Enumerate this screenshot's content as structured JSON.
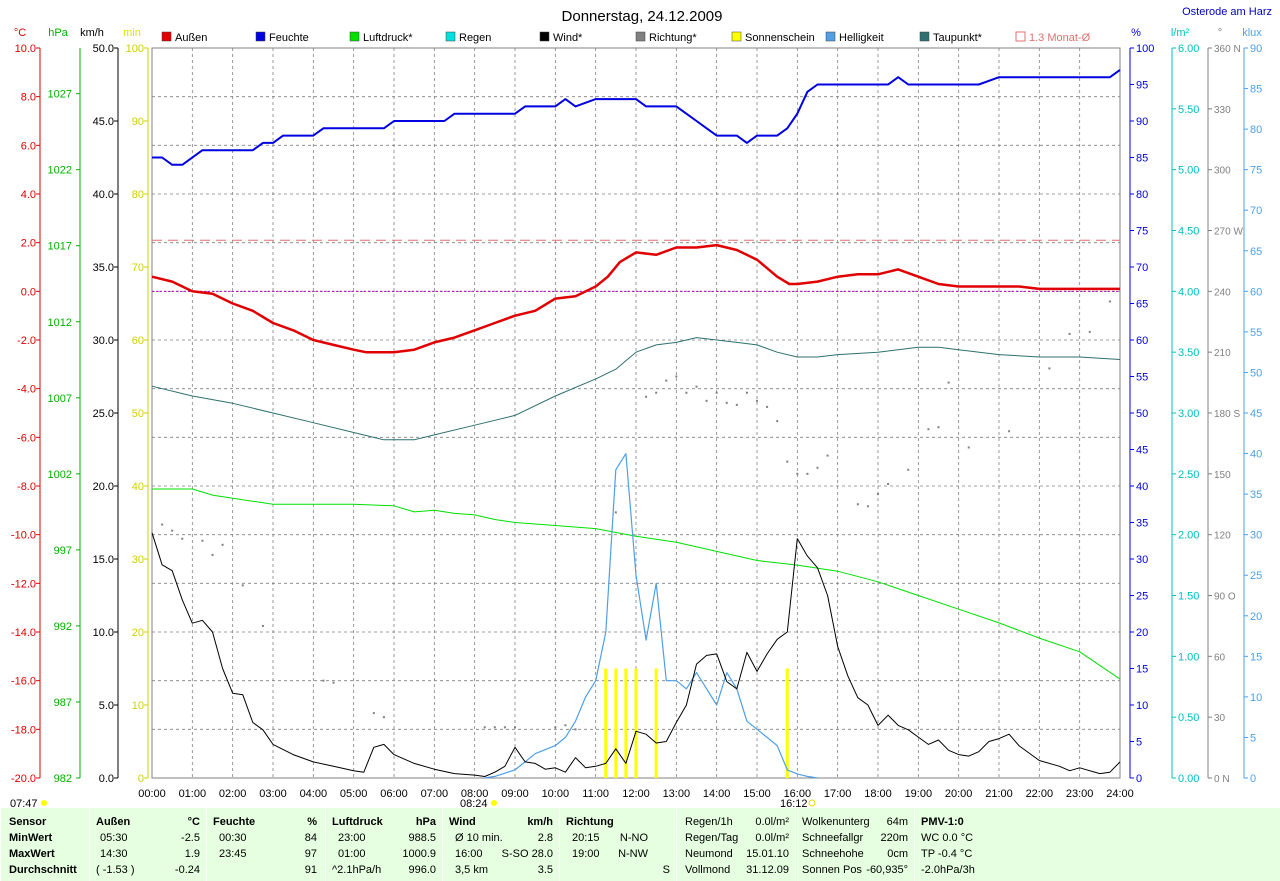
{
  "title": "Donnerstag, 24.12.2009",
  "location": "Osterode am Harz",
  "axes_units": {
    "temp": "°C",
    "pressure": "hPa",
    "wind": "km/h",
    "sun": "min",
    "humidity": "%",
    "rain": "l/m²",
    "direction": "°",
    "light": "klux"
  },
  "legend": [
    {
      "label": "Außen",
      "color": "#e00000",
      "box": "fill"
    },
    {
      "label": "Feuchte",
      "color": "#0000e0",
      "box": "fill"
    },
    {
      "label": "Luftdruck*",
      "color": "#00e000",
      "box": "fill"
    },
    {
      "label": "Regen",
      "color": "#00e0e0",
      "box": "fill"
    },
    {
      "label": "Wind*",
      "color": "#000000",
      "box": "fill"
    },
    {
      "label": "Richtung*",
      "color": "#808080",
      "box": "fill"
    },
    {
      "label": "Sonnenschein",
      "color": "#ffff00",
      "box": "fill"
    },
    {
      "label": "Helligkeit",
      "color": "#4f9fe8",
      "box": "fill"
    },
    {
      "label": "Taupunkt*",
      "color": "#2f6f6f",
      "box": "fill"
    },
    {
      "label": "1.3 Monat-Ø",
      "color": "#e07070",
      "box": "outline"
    }
  ],
  "chart_data": {
    "type": "line",
    "x_ticks": [
      "00:00",
      "01:00",
      "02:00",
      "03:00",
      "04:00",
      "05:00",
      "06:00",
      "07:00",
      "08:00",
      "09:00",
      "10:00",
      "11:00",
      "12:00",
      "13:00",
      "14:00",
      "15:00",
      "16:00",
      "17:00",
      "18:00",
      "19:00",
      "20:00",
      "21:00",
      "22:00",
      "23:00",
      "24:00"
    ],
    "temp_ticks": [
      "10.0",
      "8.0",
      "6.0",
      "4.0",
      "2.0",
      "0.0",
      "-2.0",
      "-4.0",
      "-6.0",
      "-8.0",
      "-10.0",
      "-12.0",
      "-14.0",
      "-16.0",
      "-18.0",
      "-20.0"
    ],
    "pressure_ticks": [
      "1027",
      "1022",
      "1017",
      "1012",
      "1007",
      "1002",
      "997",
      "992",
      "987",
      "982"
    ],
    "wind_ticks": [
      "50.0",
      "45.0",
      "40.0",
      "35.0",
      "30.0",
      "25.0",
      "20.0",
      "15.0",
      "10.0",
      "5.0",
      "0.0"
    ],
    "sun_ticks": [
      "100",
      "90",
      "80",
      "70",
      "60",
      "50",
      "40",
      "30",
      "20",
      "10",
      "0"
    ],
    "humidity_ticks": [
      "100",
      "95",
      "90",
      "85",
      "80",
      "75",
      "70",
      "65",
      "60",
      "55",
      "50",
      "45",
      "40",
      "35",
      "30",
      "25",
      "20",
      "15",
      "10",
      "5",
      "0"
    ],
    "rain_ticks": [
      "6.00",
      "5.50",
      "5.00",
      "4.50",
      "4.00",
      "3.50",
      "3.00",
      "2.50",
      "2.00",
      "1.50",
      "1.00",
      "0.50",
      "0.00"
    ],
    "direction_ticks": [
      "360 N",
      "330",
      "300",
      "270 W",
      "240",
      "210",
      "180 S",
      "150",
      "120",
      "90 O",
      "60",
      "30",
      "0 N"
    ],
    "light_ticks": [
      "90",
      "85",
      "80",
      "75",
      "70",
      "65",
      "60",
      "55",
      "50",
      "45",
      "40",
      "35",
      "30",
      "25",
      "20",
      "15",
      "10",
      "5",
      "0"
    ],
    "monthly_avg_temp": 2.1,
    "series": [
      {
        "name": "Außen",
        "axis": "temp",
        "color": "#e00000",
        "x": [
          0,
          0.5,
          1,
          1.5,
          2,
          2.5,
          3,
          3.5,
          4,
          4.5,
          5,
          5.3,
          5.5,
          6,
          6.5,
          7,
          7.5,
          8,
          8.5,
          9,
          9.5,
          10,
          10.5,
          11,
          11.3,
          11.6,
          12,
          12.5,
          13,
          13.5,
          14,
          14.5,
          15,
          15.5,
          15.8,
          16,
          16.5,
          17,
          17.5,
          18,
          18.5,
          19,
          19.5,
          20,
          20.5,
          21,
          21.5,
          22,
          22.5,
          23,
          23.5,
          24
        ],
        "y": [
          0.6,
          0.4,
          0.0,
          -0.1,
          -0.5,
          -0.8,
          -1.3,
          -1.6,
          -2.0,
          -2.2,
          -2.4,
          -2.5,
          -2.5,
          -2.5,
          -2.4,
          -2.1,
          -1.9,
          -1.6,
          -1.3,
          -1.0,
          -0.8,
          -0.3,
          -0.2,
          0.2,
          0.6,
          1.2,
          1.6,
          1.5,
          1.8,
          1.8,
          1.9,
          1.7,
          1.3,
          0.6,
          0.3,
          0.3,
          0.4,
          0.6,
          0.7,
          0.7,
          0.9,
          0.6,
          0.3,
          0.2,
          0.2,
          0.2,
          0.2,
          0.1,
          0.1,
          0.1,
          0.1,
          0.1
        ]
      },
      {
        "name": "Feuchte",
        "axis": "humidity",
        "color": "#0000e0",
        "x": [
          0,
          0.25,
          0.5,
          0.75,
          1.25,
          2.5,
          2.75,
          3,
          3.25,
          4,
          4.25,
          4.5,
          5.75,
          6,
          7.25,
          7.5,
          9,
          9.25,
          10,
          10.25,
          10.5,
          11,
          11.25,
          12,
          12.25,
          13,
          13.25,
          13.5,
          13.75,
          14,
          14.5,
          14.75,
          15,
          15.5,
          15.75,
          16,
          16.25,
          16.5,
          18.25,
          18.5,
          18.75,
          20,
          20.5,
          21,
          23.75,
          24
        ],
        "y": [
          85,
          85,
          84,
          84,
          86,
          86,
          87,
          87,
          88,
          88,
          89,
          89,
          89,
          90,
          90,
          91,
          91,
          92,
          92,
          93,
          92,
          93,
          93,
          93,
          92,
          92,
          91,
          90,
          89,
          88,
          88,
          87,
          88,
          88,
          89,
          91,
          94,
          95,
          95,
          96,
          95,
          95,
          95,
          96,
          96,
          97
        ]
      },
      {
        "name": "Luftdruck*",
        "axis": "pressure",
        "color": "#00e000",
        "x": [
          0,
          1,
          1.5,
          2,
          3,
          4,
          5,
          6,
          6.5,
          7,
          7.5,
          8,
          8.5,
          9,
          10,
          11,
          12,
          13,
          14,
          15,
          16,
          17,
          18,
          19,
          20,
          21,
          22,
          23,
          24
        ],
        "y": [
          1001.0,
          1001.0,
          1000.6,
          1000.4,
          1000.0,
          1000.0,
          1000.0,
          999.9,
          999.5,
          999.6,
          999.4,
          999.3,
          999.0,
          998.8,
          998.6,
          998.4,
          997.9,
          997.5,
          996.9,
          996.3,
          996.0,
          995.6,
          994.9,
          994.0,
          993.1,
          992.2,
          991.2,
          990.3,
          988.5
        ]
      },
      {
        "name": "Taupunkt*",
        "axis": "temp",
        "color": "#2f6f6f",
        "x": [
          0,
          1,
          2,
          3,
          4,
          5,
          5.75,
          6,
          6.5,
          7,
          8,
          9,
          10,
          11,
          11.5,
          12,
          12.5,
          13,
          13.5,
          14,
          14.5,
          15,
          15.5,
          16,
          16.5,
          17,
          18,
          18.5,
          19,
          19.5,
          20,
          21,
          22,
          23,
          24
        ],
        "y": [
          -3.9,
          -4.3,
          -4.6,
          -5.0,
          -5.4,
          -5.8,
          -6.1,
          -6.1,
          -6.1,
          -5.9,
          -5.5,
          -5.1,
          -4.3,
          -3.6,
          -3.2,
          -2.5,
          -2.2,
          -2.1,
          -1.9,
          -2.0,
          -2.1,
          -2.2,
          -2.5,
          -2.7,
          -2.7,
          -2.6,
          -2.5,
          -2.4,
          -2.3,
          -2.3,
          -2.4,
          -2.6,
          -2.7,
          -2.7,
          -2.8
        ]
      },
      {
        "name": "Wind*",
        "axis": "wind",
        "color": "#000000",
        "x": [
          0,
          0.25,
          0.5,
          0.75,
          1,
          1.25,
          1.5,
          1.75,
          2,
          2.25,
          2.5,
          2.75,
          3,
          3.5,
          4,
          4.5,
          5,
          5.25,
          5.5,
          5.75,
          6,
          6.5,
          7,
          7.5,
          8,
          8.25,
          8.5,
          8.75,
          9,
          9.25,
          9.5,
          9.75,
          10,
          10.25,
          10.5,
          10.75,
          11,
          11.25,
          11.5,
          11.75,
          12,
          12.25,
          12.5,
          12.75,
          13,
          13.25,
          13.5,
          13.75,
          14,
          14.25,
          14.5,
          14.75,
          15,
          15.25,
          15.5,
          15.75,
          16,
          16.25,
          16.5,
          16.75,
          17,
          17.25,
          17.5,
          17.75,
          18,
          18.25,
          18.5,
          18.75,
          19,
          19.25,
          19.5,
          19.75,
          20,
          20.25,
          20.5,
          20.75,
          21,
          21.25,
          21.5,
          22,
          22.5,
          22.75,
          23,
          23.5,
          23.75,
          24
        ],
        "y": [
          16.8,
          14.6,
          14.2,
          12.2,
          10.6,
          10.8,
          10.0,
          7.5,
          5.8,
          5.7,
          3.8,
          3.3,
          2.3,
          1.6,
          1.1,
          0.8,
          0.5,
          0.4,
          2.1,
          2.3,
          1.6,
          1.0,
          0.6,
          0.3,
          0.2,
          0.1,
          0.4,
          0.8,
          2.1,
          1.1,
          1.0,
          0.6,
          0.7,
          0.4,
          1.4,
          0.7,
          0.8,
          1.0,
          2.0,
          1.0,
          3.2,
          3.0,
          2.4,
          2.5,
          3.8,
          5.0,
          7.8,
          8.4,
          8.5,
          6.6,
          6.1,
          8.6,
          7.3,
          8.5,
          9.5,
          10.0,
          16.4,
          15.2,
          14.4,
          12.5,
          9.0,
          7.0,
          5.5,
          5.0,
          3.6,
          4.3,
          3.6,
          3.3,
          2.8,
          2.3,
          2.6,
          1.9,
          1.6,
          1.5,
          1.8,
          2.5,
          2.7,
          3.0,
          2.2,
          1.2,
          0.8,
          0.5,
          0.7,
          0.3,
          0.4,
          1.1
        ]
      },
      {
        "name": "Helligkeit",
        "axis": "light",
        "color": "#4f9fe8",
        "x": [
          8.25,
          8.5,
          9,
          9.5,
          10,
          10.25,
          10.5,
          10.75,
          11,
          11.25,
          11.5,
          11.75,
          12,
          12.25,
          12.5,
          12.75,
          13,
          13.25,
          13.5,
          13.75,
          14,
          14.25,
          14.5,
          14.75,
          15,
          15.25,
          15.5,
          15.75,
          16,
          16.25,
          16.5
        ],
        "y": [
          0,
          0.2,
          1,
          3,
          4,
          5,
          7,
          10,
          12,
          18,
          38,
          40,
          25,
          17,
          24,
          12,
          12,
          11,
          13,
          11,
          9,
          13,
          11,
          7,
          6,
          5,
          4,
          1,
          0.5,
          0.2,
          0
        ]
      },
      {
        "name": "Sonnenschein",
        "axis": "sun",
        "color": "#ffff00",
        "type": "bar",
        "x": [
          11.25,
          11.5,
          11.75,
          12,
          12.5,
          15.75
        ],
        "y": [
          15,
          15,
          15,
          15,
          15,
          15
        ]
      },
      {
        "name": "Richtung*",
        "axis": "direction",
        "color": "#808080",
        "type": "scatter",
        "x": [
          0.25,
          0.5,
          0.75,
          1.25,
          1.5,
          1.75,
          2.25,
          2.75,
          4.25,
          4.5,
          5.5,
          5.75,
          8.25,
          8.5,
          8.75,
          9,
          10,
          10.25,
          10.5,
          11.5,
          12.25,
          12.5,
          12.75,
          13,
          13.25,
          13.5,
          13.75,
          14,
          14.25,
          14.5,
          14.75,
          15,
          15.25,
          15.5,
          15.75,
          16,
          16.25,
          16.5,
          16.75,
          17.5,
          17.75,
          18,
          18.25,
          18.75,
          19.25,
          19.5,
          19.75,
          20.25,
          21.25,
          22.25,
          22.75,
          23.25,
          23.75
        ],
        "y": [
          125,
          122,
          118,
          117,
          110,
          115,
          95,
          75,
          48,
          47,
          32,
          30,
          25,
          25,
          25,
          25,
          25,
          26,
          24,
          131,
          188,
          190,
          196,
          198,
          190,
          193,
          186,
          190,
          185,
          184,
          190,
          186,
          183,
          176,
          156,
          150,
          150,
          153,
          159,
          135,
          134,
          140,
          145,
          152,
          172,
          173,
          195,
          163,
          171,
          202,
          219,
          220,
          235
        ]
      }
    ]
  },
  "sun_markers": {
    "sunrise": "07:47",
    "sun_on": "08:24",
    "sun_off": "16:12"
  },
  "footer": {
    "sensor": {
      "h": "Sensor",
      "rows": [
        "MinWert",
        "MaxWert",
        "Durchschnitt"
      ]
    },
    "aussen": {
      "h": "Außen",
      "u": "°C",
      "rows": [
        [
          "05:30",
          "-2.5"
        ],
        [
          "14:30",
          "1.9"
        ],
        [
          "( -1.53 )",
          "-0.24"
        ]
      ]
    },
    "feuchte": {
      "h": "Feuchte",
      "u": "%",
      "rows": [
        [
          "00:30",
          "84"
        ],
        [
          "23:45",
          "97"
        ],
        [
          "",
          "91"
        ]
      ]
    },
    "luftdruck": {
      "h": "Luftdruck",
      "u": "hPa",
      "rows": [
        [
          "23:00",
          "988.5"
        ],
        [
          "01:00",
          "1000.9"
        ],
        [
          "^2.1hPa/h",
          "996.0"
        ]
      ]
    },
    "wind": {
      "h": "Wind",
      "u": "km/h",
      "rows": [
        [
          "Ø 10 min.",
          "2.8"
        ],
        [
          "16:00",
          "S-SO 28.0"
        ],
        [
          "3,5 km",
          "3.5"
        ]
      ]
    },
    "richtung": {
      "h": "Richtung",
      "rows": [
        [
          "20:15",
          "N-NO"
        ],
        [
          "19:00",
          "N-NW"
        ],
        [
          "",
          "S"
        ]
      ]
    },
    "regen": {
      "rows": [
        [
          "Regen/1h",
          "0.0l/m²"
        ],
        [
          "Regen/Tag",
          "0.0l/m²"
        ],
        [
          "Neumond",
          "15.01.10"
        ],
        [
          "Vollmond",
          "31.12.09"
        ]
      ]
    },
    "wolken": {
      "rows": [
        [
          "Wolkenunterg",
          "64m"
        ],
        [
          "Schneefallgr",
          "220m"
        ],
        [
          "Schneehohe",
          "0cm"
        ],
        [
          "Sonnen Pos",
          "-60,935°"
        ]
      ]
    },
    "pmv": {
      "rows": [
        "PMV-1:0",
        "WC 0.0 °C",
        "TP -0.4 °C",
        "-2.0hPa/3h"
      ]
    }
  }
}
